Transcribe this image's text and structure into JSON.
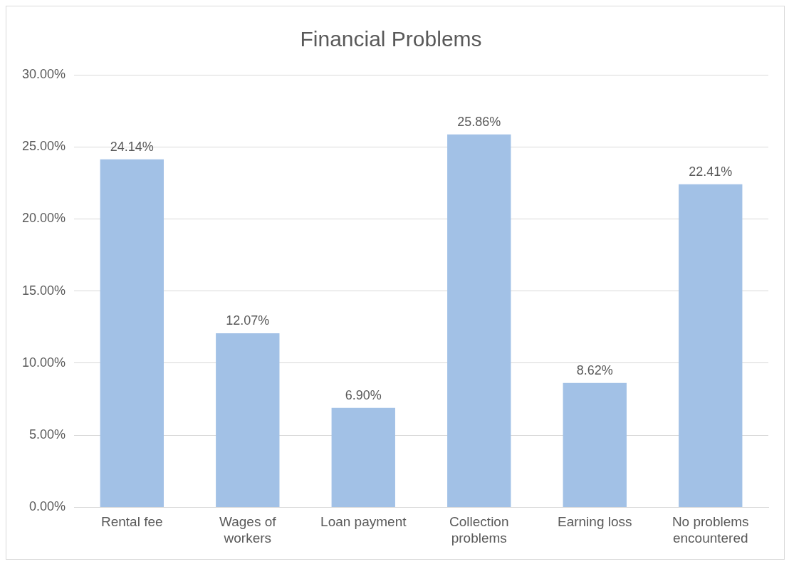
{
  "chart_data": {
    "type": "bar",
    "title": "Financial Problems",
    "categories": [
      "Rental fee",
      "Wages of workers",
      "Loan payment",
      "Collection problems",
      "Earning loss",
      "No problems encountered"
    ],
    "values": [
      24.14,
      12.07,
      6.9,
      25.86,
      8.62,
      22.41
    ],
    "value_labels": [
      "24.14%",
      "12.07%",
      "6.90%",
      "25.86%",
      "8.62%",
      "22.41%"
    ],
    "color": "#a2c1e6",
    "ylim": [
      0,
      30
    ],
    "yticks": [
      {
        "value": 0,
        "label": "0.00%"
      },
      {
        "value": 5,
        "label": "5.00%"
      },
      {
        "value": 10,
        "label": "10.00%"
      },
      {
        "value": 15,
        "label": "15.00%"
      },
      {
        "value": 20,
        "label": "20.00%"
      },
      {
        "value": 25,
        "label": "25.00%"
      },
      {
        "value": 30,
        "label": "30.00%"
      }
    ],
    "grid": "y",
    "legend": false
  }
}
